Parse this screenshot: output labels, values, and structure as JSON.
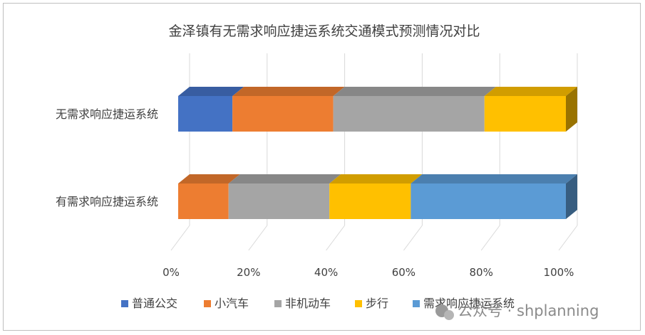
{
  "chart_data": {
    "type": "bar",
    "orientation": "horizontal",
    "stacked": "percent",
    "title": "金泽镇有无需求响应捷运系统交通模式预测情况对比",
    "categories": [
      "无需求响应捷运系统",
      "有需求响应捷运系统"
    ],
    "series": [
      {
        "name": "普通公交",
        "color": "#4472C4",
        "values": [
          14,
          0
        ]
      },
      {
        "name": "小汽车",
        "color": "#ED7D31",
        "values": [
          26,
          13
        ]
      },
      {
        "name": "非机动车",
        "color": "#A5A5A5",
        "values": [
          39,
          26
        ]
      },
      {
        "name": "步行",
        "color": "#FFC000",
        "values": [
          21,
          21
        ]
      },
      {
        "name": "需求响应捷运系统",
        "color": "#5B9BD5",
        "values": [
          0,
          40
        ]
      }
    ],
    "xticks": [
      "0%",
      "20%",
      "40%",
      "60%",
      "80%",
      "100%"
    ],
    "xlim": [
      0,
      100
    ],
    "grid": true,
    "legend_position": "bottom"
  },
  "watermark": {
    "text": "公众号 · shplanning"
  }
}
